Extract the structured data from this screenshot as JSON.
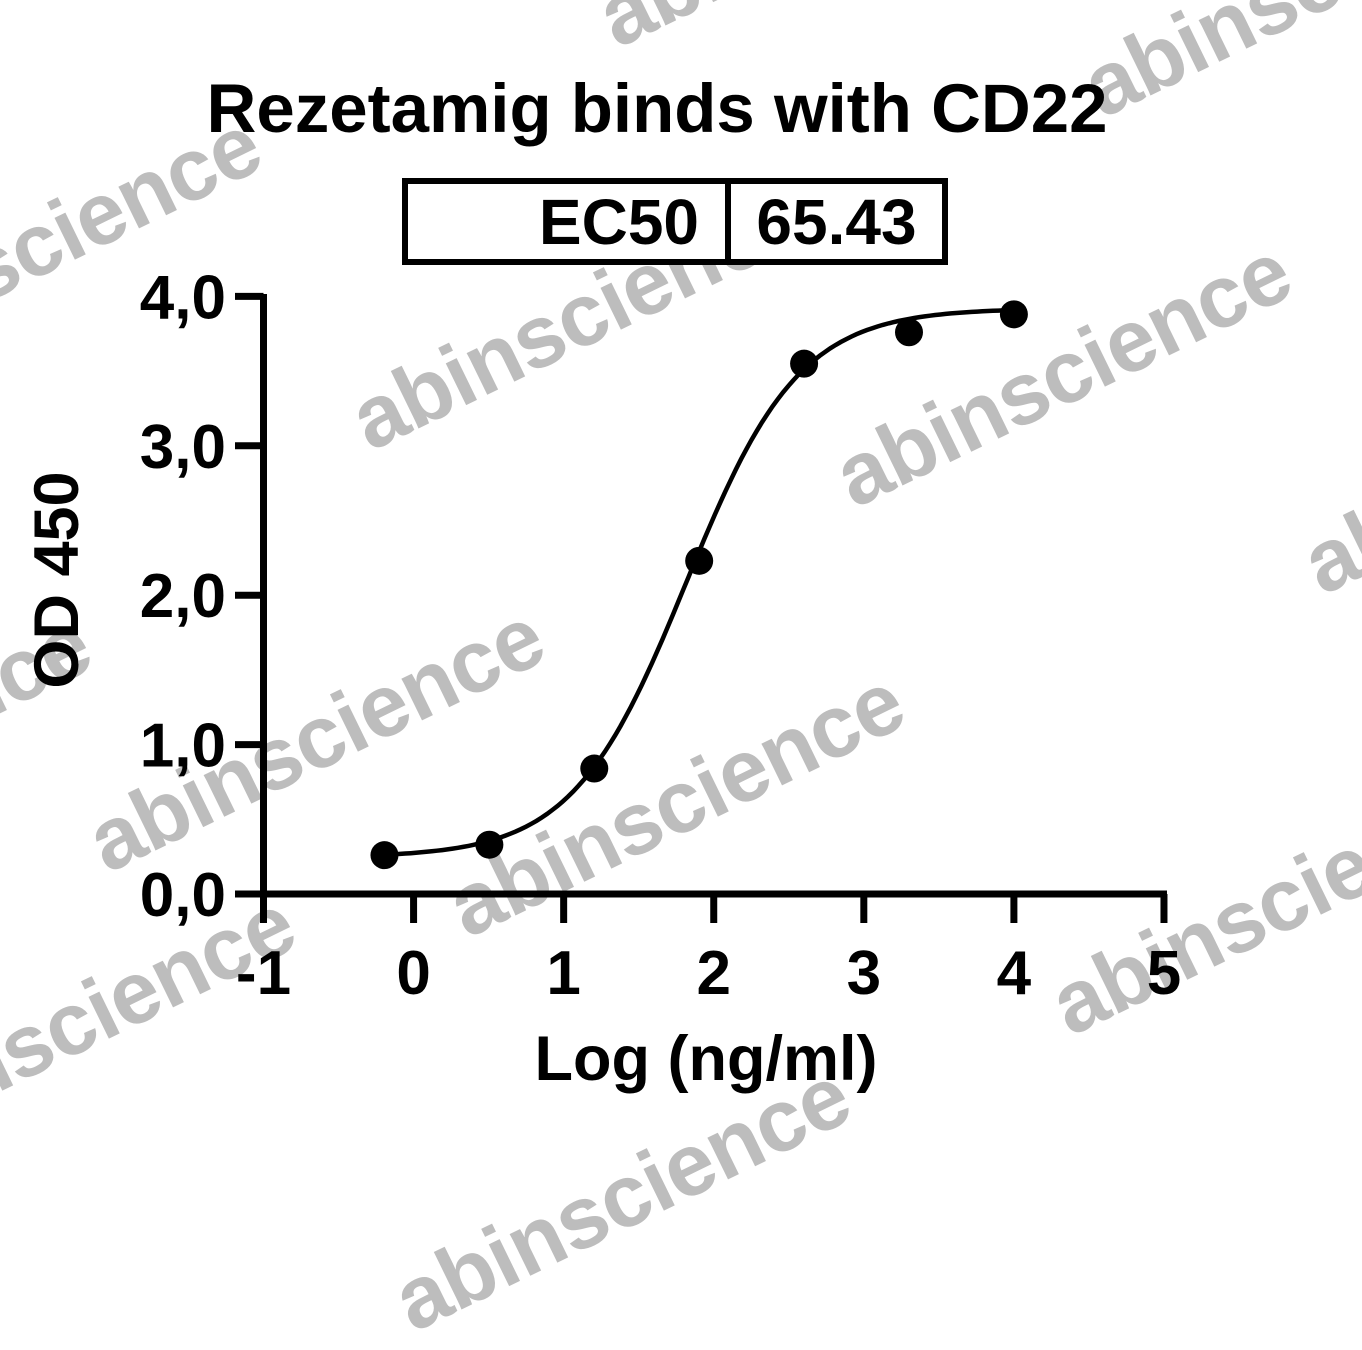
{
  "watermark": {
    "text": "abinscience",
    "color": "#bdbdbd"
  },
  "chart_data": {
    "type": "scatter",
    "title": "Rezetamig binds with CD22",
    "table": {
      "label": "EC50",
      "value": "65.43"
    },
    "ec50": 65.43,
    "xlabel": "Log (ng/ml)",
    "ylabel": "OD 450",
    "xlim": [
      -1,
      5
    ],
    "ylim": [
      0,
      4
    ],
    "x_ticks": [
      -1,
      0,
      1,
      2,
      3,
      4,
      5
    ],
    "x_tick_labels": [
      "-1",
      "0",
      "1",
      "2",
      "3",
      "4",
      "5"
    ],
    "y_ticks": [
      0,
      1,
      2,
      3,
      4
    ],
    "y_tick_labels": [
      "0,0",
      "1,0",
      "2,0",
      "3,0",
      "4,0"
    ],
    "grid": false,
    "legend": "none",
    "points": [
      {
        "x": -0.194,
        "y": 0.26
      },
      {
        "x": 0.505,
        "y": 0.33
      },
      {
        "x": 1.204,
        "y": 0.84
      },
      {
        "x": 1.903,
        "y": 2.23
      },
      {
        "x": 2.602,
        "y": 3.55
      },
      {
        "x": 3.301,
        "y": 3.76
      },
      {
        "x": 4.0,
        "y": 3.88
      }
    ],
    "fit": {
      "model": "4PL",
      "bottom": 0.245,
      "top": 3.92,
      "log_ec50": 1.8157,
      "hill": 1.15,
      "x_start": -0.194,
      "x_end": 4.0
    },
    "marker_color": "#000000",
    "line_color": "#000000"
  }
}
